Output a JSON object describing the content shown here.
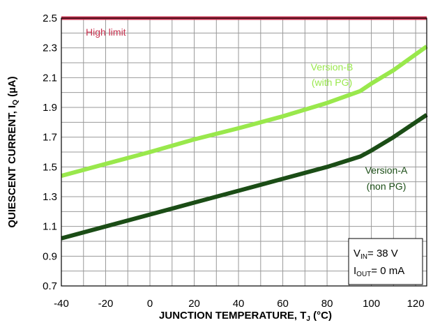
{
  "chart_data": {
    "type": "line",
    "xlabel": "JUNCTION TEMPERATURE, T",
    "xlabel_sub": "J",
    "xlabel_unit": " (°C)",
    "ylabel": "QUIESCENT CURRENT, I",
    "ylabel_sub": "Q",
    "ylabel_unit": " (µA)",
    "xlim": [
      -40,
      125
    ],
    "ylim": [
      0.7,
      2.5
    ],
    "xticks": [
      "-40",
      "-20",
      "0",
      "20",
      "40",
      "60",
      "80",
      "100",
      "120"
    ],
    "xtick_values": [
      -40,
      -20,
      0,
      20,
      40,
      60,
      80,
      100,
      120
    ],
    "yticks": [
      "0.7",
      "0.9",
      "1.1",
      "1.3",
      "1.5",
      "1.7",
      "1.9",
      "2.1",
      "2.3",
      "2.5"
    ],
    "ytick_values": [
      0.7,
      0.9,
      1.1,
      1.3,
      1.5,
      1.7,
      1.9,
      2.1,
      2.3,
      2.5
    ],
    "grid": true,
    "series": [
      {
        "name": "High limit",
        "color": "#c8324f",
        "x": [
          -40,
          125
        ],
        "y": [
          2.5,
          2.5
        ]
      },
      {
        "name": "Version-B (with PG)",
        "color": "#99e84c",
        "x": [
          -40,
          -20,
          0,
          20,
          40,
          60,
          80,
          95,
          100,
          110,
          125
        ],
        "y": [
          1.44,
          1.52,
          1.6,
          1.685,
          1.76,
          1.84,
          1.93,
          2.01,
          2.06,
          2.15,
          2.31
        ]
      },
      {
        "name": "Version-A (non PG)",
        "color": "#1b4d16",
        "x": [
          -40,
          -20,
          0,
          20,
          40,
          60,
          80,
          95,
          100,
          110,
          125
        ],
        "y": [
          1.02,
          1.1,
          1.18,
          1.26,
          1.34,
          1.42,
          1.5,
          1.57,
          1.61,
          1.7,
          1.85
        ]
      }
    ],
    "annotations": {
      "high_limit": "High limit",
      "version_b_line1": "Version-B",
      "version_b_line2": "(with PG)",
      "version_a_line1": "Version-A",
      "version_a_line2": "(non PG)"
    },
    "conditions": {
      "vin_label": "V",
      "vin_sub": "IN",
      "vin_value": "= 38 V",
      "iout_label": "I",
      "iout_sub": "OUT",
      "iout_value": "= 0 mA"
    }
  }
}
